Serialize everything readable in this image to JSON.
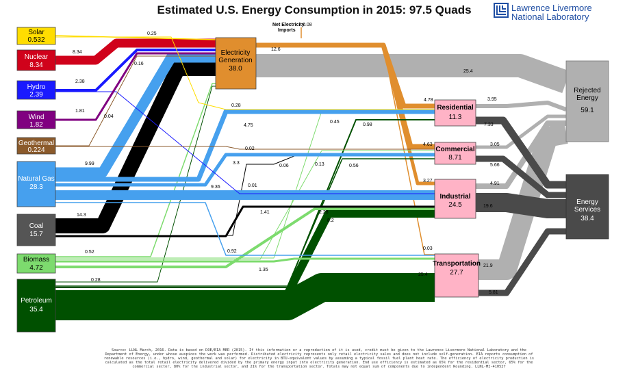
{
  "title": "Estimated U.S. Energy Consumption in 2015: 97.5 Quads",
  "brand": {
    "line1": "Lawrence Livermore",
    "line2": "National Laboratory"
  },
  "net_import_label": [
    "Net Electricity",
    "Imports"
  ],
  "colors": {
    "solar": "#ffdd00",
    "nuclear": "#d0021b",
    "hydro": "#1a1aff",
    "wind": "#800080",
    "geothermal": "#8b5a2b",
    "gas": "#46a0ee",
    "coal": "#000000",
    "biomass": "#7ddb6e",
    "petroleum": "#005000",
    "electricity": "#e08e2e",
    "sector": "#ffb3c6",
    "rejected": "#b0b0b0",
    "services": "#4a4a4a"
  },
  "sources": [
    {
      "id": "solar",
      "name": "Solar",
      "value": "0.532"
    },
    {
      "id": "nuclear",
      "name": "Nuclear",
      "value": "8.34"
    },
    {
      "id": "hydro",
      "name": "Hydro",
      "value": "2.39"
    },
    {
      "id": "wind",
      "name": "Wind",
      "value": "1.82"
    },
    {
      "id": "geothermal",
      "name": "Geothermal",
      "value": "0.224"
    },
    {
      "id": "gas",
      "name": "Natural Gas",
      "value": "28.3"
    },
    {
      "id": "coal",
      "name": "Coal",
      "value": "15.7"
    },
    {
      "id": "biomass",
      "name": "Biomass",
      "value": "4.72"
    },
    {
      "id": "petroleum",
      "name": "Petroleum",
      "value": "35.4"
    }
  ],
  "electricity": {
    "name": [
      "Electricity",
      "Generation"
    ],
    "value": "38.0"
  },
  "sectors": [
    {
      "id": "residential",
      "name": "Residential",
      "value": "11.3"
    },
    {
      "id": "commercial",
      "name": "Commercial",
      "value": "8.71"
    },
    {
      "id": "industrial",
      "name": "Industrial",
      "value": "24.5"
    },
    {
      "id": "transportation",
      "name": "Transportation",
      "value": "27.7"
    }
  ],
  "rejected": {
    "name": [
      "Rejected",
      "Energy"
    ],
    "value": "59.1"
  },
  "services": {
    "name": [
      "Energy",
      "Services"
    ],
    "value": "38.4"
  },
  "flow_labels": [
    "0.25",
    "8.34",
    "0.16",
    "2.38",
    "1.81",
    "0.04",
    "9.99",
    "14.3",
    "0.52",
    "0.28",
    "0.08",
    "12.6",
    "25.4",
    "4.78",
    "4.63",
    "3.27",
    "0.03",
    "0.28",
    "4.75",
    "0.02",
    "3.3",
    "0.06",
    "0.01",
    "9.36",
    "0.45",
    "0.98",
    "0.13",
    "0.56",
    "1.41",
    "2.28",
    "8.2",
    "0.92",
    "1.35",
    "25.4",
    "3.95",
    "7.33",
    "3.05",
    "5.66",
    "4.91",
    "19.6",
    "21.9",
    "5.81"
  ],
  "source_note": [
    "Source: LLNL March, 2016. Data is based on DOE/EIA MER (2015). If this information or a reproduction of it is used, credit must be given to the Lawrence Livermore National Laboratory and the",
    "Department of Energy, under whose auspices the work was performed. Distributed electricity represents only retail electricity sales and does not include self-generation. EIA reports consumption of",
    "renewable resources (i.e., hydro, wind, geothermal and solar) for electricity in BTU-equivalent values by assuming a typical fossil fuel plant heat rate. The efficiency of electricity production is",
    "calculated as the total retail electricity delivered divided by the primary energy input into electricity generation. End use efficiency is estimated as 65% for the residential sector, 65% for the",
    "commercial sector, 80% for the industrial sector, and 21% for the transportation sector. Totals may not equal sum of components due to independent Rounding. LLNL-MI-410527"
  ]
}
